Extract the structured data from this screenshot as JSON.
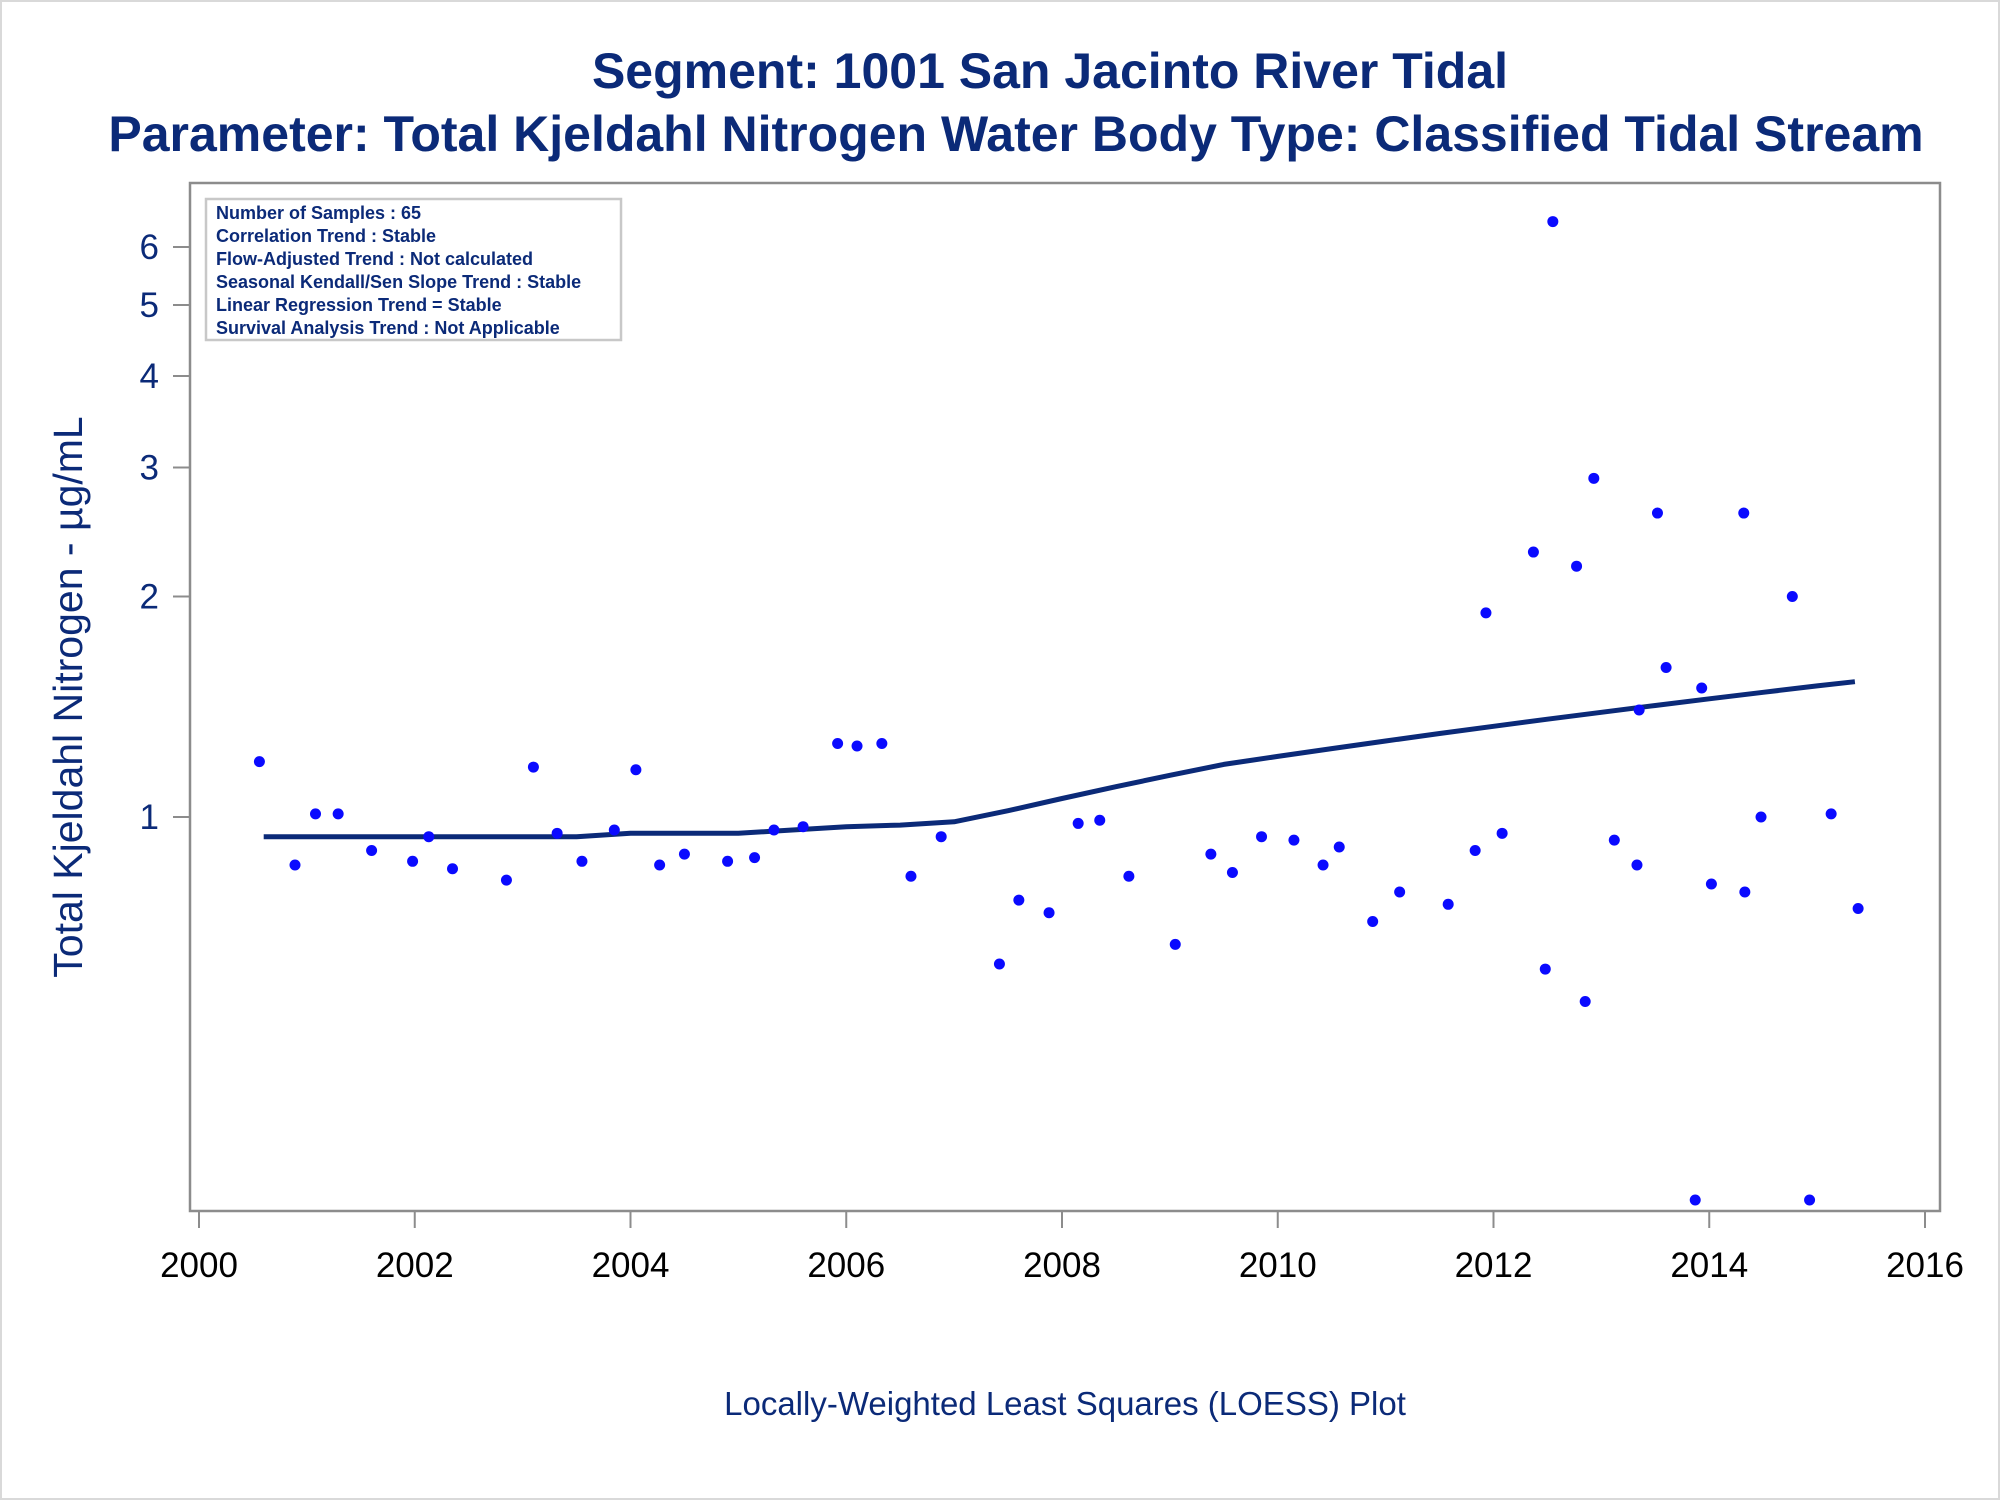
{
  "chart_data": {
    "type": "scatter",
    "title": "Segment: 1001  San Jacinto River Tidal",
    "subtitle": "Parameter: Total Kjeldahl Nitrogen   Water Body Type: Classified Tidal Stream",
    "ylabel": "Total Kjeldahl Nitrogen -  µg/mL",
    "footnote": "Locally-Weighted Least Squares (LOESS) Plot",
    "yscale": "log",
    "xlim": [
      2000,
      2016
    ],
    "ylim": [
      0.3,
      7
    ],
    "x_ticks": [
      "2000",
      "2002",
      "2004",
      "2006",
      "2008",
      "2010",
      "2012",
      "2014",
      "2016"
    ],
    "y_ticks": [
      {
        "value": 1,
        "label": "1"
      },
      {
        "value": 2,
        "label": "2"
      },
      {
        "value": 3,
        "label": "3"
      },
      {
        "value": 4,
        "label": "4"
      },
      {
        "value": 5,
        "label": "5"
      },
      {
        "value": 6,
        "label": "6"
      }
    ],
    "grid": false,
    "legend": "none",
    "stats_box": [
      "Number of Samples : 65",
      "Correlation Trend : Stable",
      "Flow-Adjusted Trend : Not calculated",
      "Seasonal Kendall/Sen Slope Trend : Stable",
      "Linear Regression Trend = Stable",
      "Survival Analysis Trend : Not Applicable"
    ],
    "series": [
      {
        "kind": "points",
        "color": "#0a0aff",
        "x": [
          2000.56,
          2000.89,
          2001.08,
          2001.29,
          2001.6,
          2001.98,
          2002.13,
          2002.35,
          2002.85,
          2003.1,
          2003.32,
          2003.55,
          2003.85,
          2004.05,
          2004.27,
          2004.5,
          2004.9,
          2005.15,
          2005.33,
          2005.6,
          2005.92,
          2006.1,
          2006.33,
          2006.6,
          2006.88,
          2007.42,
          2007.6,
          2007.88,
          2008.15,
          2008.35,
          2008.62,
          2009.05,
          2009.38,
          2009.58,
          2009.85,
          2010.15,
          2010.42,
          2010.57,
          2010.88,
          2011.13,
          2011.58,
          2011.83,
          2011.93,
          2012.08,
          2012.37,
          2012.48,
          2012.55,
          2012.77,
          2012.85,
          2012.93,
          2013.12,
          2013.33,
          2013.35,
          2013.52,
          2013.6,
          2013.87,
          2013.93,
          2014.02,
          2014.32,
          2014.33,
          2014.48,
          2014.77,
          2014.93,
          2015.13,
          2015.38
        ],
        "y": [
          1.19,
          0.86,
          1.01,
          1.01,
          0.9,
          0.87,
          0.94,
          0.85,
          0.82,
          1.17,
          0.95,
          0.87,
          0.96,
          1.16,
          0.86,
          0.89,
          0.87,
          0.88,
          0.96,
          0.97,
          1.26,
          1.25,
          1.26,
          0.83,
          0.94,
          0.63,
          0.77,
          0.74,
          0.98,
          0.99,
          0.83,
          0.67,
          0.89,
          0.84,
          0.94,
          0.93,
          0.86,
          0.91,
          0.72,
          0.79,
          0.76,
          0.9,
          1.9,
          0.95,
          2.3,
          0.62,
          6.5,
          2.2,
          0.56,
          2.9,
          0.93,
          0.86,
          1.4,
          2.6,
          1.6,
          0.3,
          1.5,
          0.81,
          2.6,
          0.79,
          1.0,
          2.0,
          0.3,
          1.01,
          0.75
        ]
      },
      {
        "kind": "loess",
        "color": "#0b2a78",
        "x": [
          2000.6,
          2001.0,
          2001.5,
          2002.0,
          2002.5,
          2003.0,
          2003.5,
          2004.0,
          2004.5,
          2005.0,
          2005.5,
          2006.0,
          2006.5,
          2007.0,
          2007.5,
          2008.0,
          2008.5,
          2009.0,
          2009.5,
          2010.0,
          2010.5,
          2011.0,
          2011.5,
          2012.0,
          2012.5,
          2013.0,
          2013.5,
          2014.0,
          2014.5,
          2015.0,
          2015.35
        ],
        "y": [
          0.94,
          0.94,
          0.94,
          0.94,
          0.94,
          0.94,
          0.94,
          0.95,
          0.95,
          0.95,
          0.96,
          0.97,
          0.975,
          0.985,
          1.02,
          1.06,
          1.1,
          1.14,
          1.18,
          1.21,
          1.24,
          1.27,
          1.3,
          1.33,
          1.36,
          1.39,
          1.42,
          1.45,
          1.48,
          1.51,
          1.53
        ]
      }
    ]
  }
}
